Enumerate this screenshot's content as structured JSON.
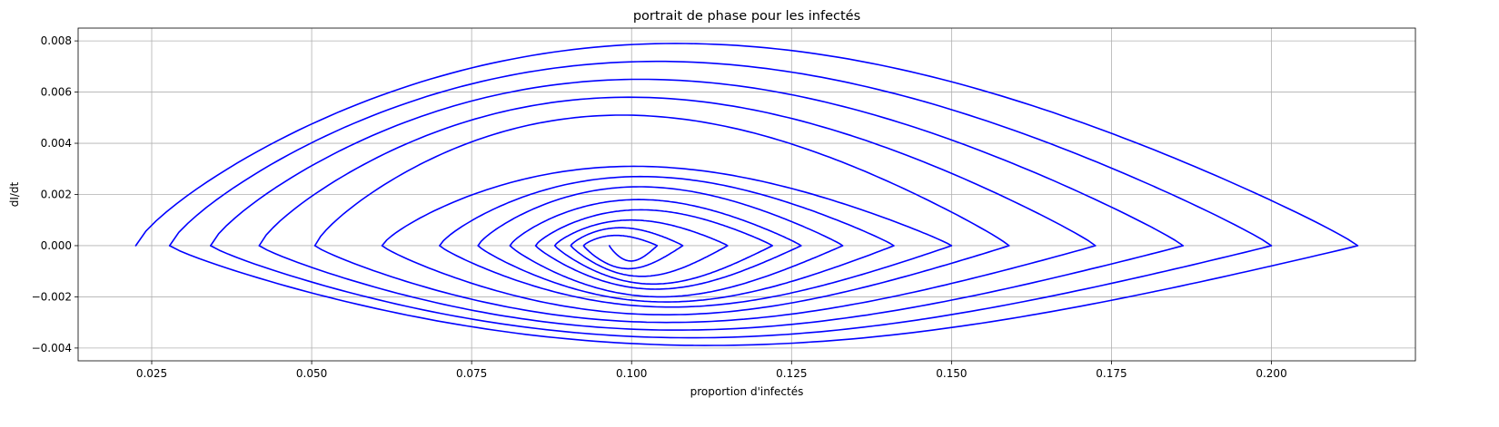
{
  "chart_data": {
    "type": "line",
    "title": "portrait de phase pour les infectés",
    "xlabel": "proportion d'infectés",
    "ylabel": "dI/dt",
    "xlim": [
      0.0135,
      0.2225
    ],
    "ylim": [
      -0.0045,
      0.0085
    ],
    "xticks": [
      "0.025",
      "0.050",
      "0.075",
      "0.100",
      "0.125",
      "0.150",
      "0.175",
      "0.200"
    ],
    "xtick_values": [
      0.025,
      0.05,
      0.075,
      0.1,
      0.125,
      0.15,
      0.175,
      0.2
    ],
    "yticks": [
      "−0.004",
      "−0.002",
      "0.000",
      "0.002",
      "0.004",
      "0.006",
      "0.008"
    ],
    "ytick_values": [
      -0.004,
      -0.002,
      0.0,
      0.002,
      0.004,
      0.006,
      0.008
    ],
    "grid": true,
    "series_color": "#0000ff",
    "trajectories": [
      {
        "start": 0.0225,
        "maxI": 0.2135,
        "up": 0.0079,
        "down": -0.0039
      },
      {
        "start": 0.0278,
        "maxI": 0.2,
        "up": 0.0072,
        "down": -0.0036
      },
      {
        "start": 0.0342,
        "maxI": 0.1862,
        "up": 0.0065,
        "down": -0.0033
      },
      {
        "start": 0.0418,
        "maxI": 0.1725,
        "up": 0.0058,
        "down": -0.003
      },
      {
        "start": 0.0505,
        "maxI": 0.159,
        "up": 0.0051,
        "down": -0.0027
      },
      {
        "start": 0.061,
        "maxI": 0.15,
        "up": 0.0031,
        "down": -0.0024
      },
      {
        "start": 0.07,
        "maxI": 0.141,
        "up": 0.0027,
        "down": -0.0022
      },
      {
        "start": 0.076,
        "maxI": 0.133,
        "up": 0.0023,
        "down": -0.002
      },
      {
        "start": 0.081,
        "maxI": 0.1265,
        "up": 0.0018,
        "down": -0.0017
      },
      {
        "start": 0.085,
        "maxI": 0.122,
        "up": 0.0014,
        "down": -0.0015
      },
      {
        "start": 0.088,
        "maxI": 0.115,
        "up": 0.001,
        "down": -0.0012
      },
      {
        "start": 0.0905,
        "maxI": 0.108,
        "up": 0.0007,
        "down": -0.0009
      },
      {
        "start": 0.0925,
        "maxI": 0.104,
        "up": 0.0004,
        "down": -0.0006
      }
    ]
  }
}
